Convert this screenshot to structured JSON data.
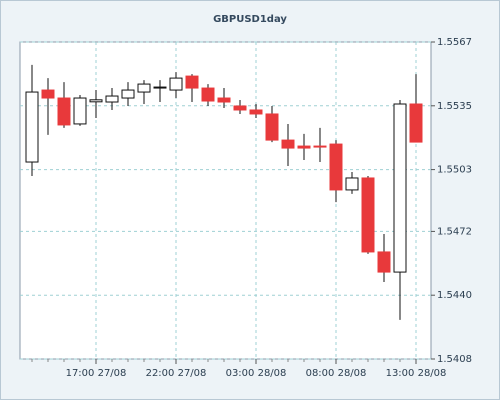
{
  "chart_data": {
    "type": "candlestick",
    "title": "GBPUSD1day",
    "categories": [
      null,
      null,
      null,
      null,
      "17:00 27/08",
      null,
      null,
      null,
      null,
      "22:00 27/08",
      null,
      null,
      null,
      null,
      "03:00 28/08",
      null,
      null,
      null,
      null,
      "08:00 28/08",
      null,
      null,
      null,
      null,
      "13:00 28/08"
    ],
    "open": [
      1.55068,
      1.55429,
      1.55389,
      1.55259,
      1.5537,
      1.55369,
      1.55389,
      1.55419,
      1.55439,
      1.55429,
      1.55499,
      1.55439,
      1.55389,
      1.55349,
      1.55329,
      1.55309,
      1.55178,
      1.55148,
      1.55148,
      1.55158,
      1.54928,
      1.54988,
      1.54617,
      1.54516,
      1.55359
    ],
    "high": [
      1.55555,
      1.55489,
      1.55469,
      1.55404,
      1.55429,
      1.55439,
      1.55469,
      1.55479,
      1.55479,
      1.55519,
      1.55509,
      1.55459,
      1.55439,
      1.55379,
      1.55359,
      1.55349,
      1.55259,
      1.55209,
      1.55239,
      1.55178,
      1.55018,
      1.54998,
      1.54707,
      1.55379,
      1.55509
    ],
    "low": [
      1.54998,
      1.55204,
      1.55239,
      1.55249,
      1.55289,
      1.55329,
      1.55349,
      1.55359,
      1.55369,
      1.55389,
      1.55369,
      1.55349,
      1.55339,
      1.55309,
      1.55289,
      1.55168,
      1.55048,
      1.55078,
      1.55068,
      1.54867,
      1.54908,
      1.54607,
      1.54466,
      1.54276,
      1.55168
    ],
    "close": [
      1.55419,
      1.55389,
      1.55254,
      1.55389,
      1.5538,
      1.55399,
      1.55429,
      1.55459,
      1.55444,
      1.55489,
      1.55439,
      1.55374,
      1.55369,
      1.55329,
      1.55309,
      1.55178,
      1.55138,
      1.55138,
      1.55143,
      1.54928,
      1.54988,
      1.54617,
      1.54516,
      1.55359,
      1.55168
    ],
    "up_color": "#ffffff",
    "down_color": "#e8393b",
    "ylim": [
      1.5408,
      1.5567
    ],
    "yticks": [
      1.5408,
      {
        "value": 1.544,
        "label": "1.5440"
      },
      1.5472,
      1.5503,
      1.5535,
      1.5567
    ],
    "grid": true
  }
}
